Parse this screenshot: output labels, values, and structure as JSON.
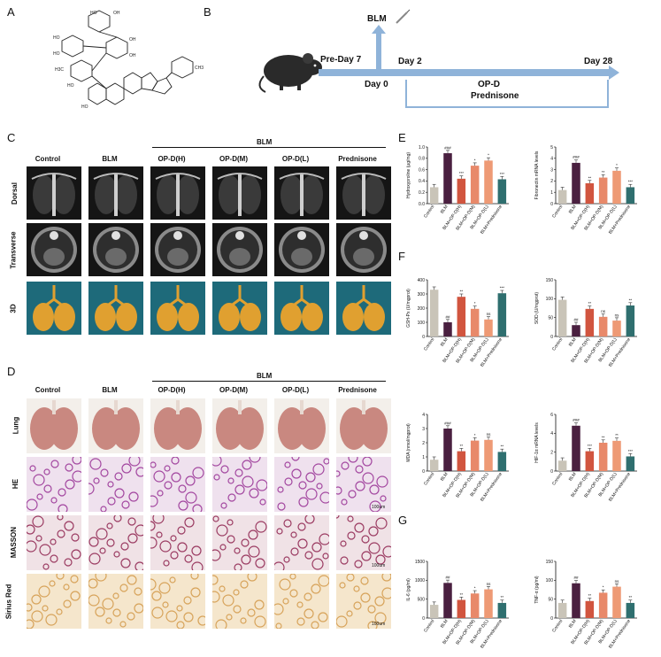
{
  "panels": {
    "A": "A",
    "B": "B",
    "C": "C",
    "D": "D",
    "E": "E",
    "F": "F",
    "G": "G"
  },
  "timeline": {
    "blm": "BLM",
    "pre_day": "Pre-Day 7",
    "day0": "Day 0",
    "day2": "Day 2",
    "day28": "Day 28",
    "drug1": "OP-D",
    "drug2": "Prednisone"
  },
  "groups": [
    "Control",
    "BLM",
    "OP-D(H)",
    "OP-D(M)",
    "OP-D(L)",
    "Prednisone"
  ],
  "blm_bracket": "BLM",
  "ct_rows": [
    "Dorsal",
    "Transverse",
    "3D"
  ],
  "hist_rows": [
    "Lung",
    "HE",
    "MASSON",
    "Sirius Red"
  ],
  "scale_bar": "100um",
  "colors": {
    "control": "#c9c4b8",
    "blm": "#4a2040",
    "op_h": "#d1553f",
    "op_m": "#e8896a",
    "op_l": "#ee9a75",
    "pred": "#2f6f6f",
    "ct_bg": "#151515",
    "lung3d": "#e0a030",
    "bg3d": "#1e6a7a"
  },
  "chart_data": [
    {
      "type": "bar",
      "id": "hydroxyproline",
      "ylabel": "Hydroxyproline (μg/mg)",
      "ylim": [
        0,
        1.0
      ],
      "yticks": [
        "0.0",
        "0.2",
        "0.4",
        "0.6",
        "0.8",
        "1.0"
      ],
      "categories": [
        "Control",
        "BLM",
        "BLM+OP-D(H)",
        "BLM+OP-D(M)",
        "BLM+OP-D(L)",
        "BLM+Prednisone"
      ],
      "values": [
        0.29,
        0.89,
        0.44,
        0.67,
        0.76,
        0.43
      ],
      "sig": [
        "",
        "###",
        "***",
        "*",
        "*",
        "***"
      ]
    },
    {
      "type": "bar",
      "id": "fibronectin",
      "ylabel": "Fibronectin mRNA levels",
      "ylim": [
        0,
        5
      ],
      "yticks": [
        "0",
        "1",
        "2",
        "3",
        "4",
        "5"
      ],
      "categories": [
        "Control",
        "BLM",
        "BLM+OP-D(H)",
        "BLM+OP-D(M)",
        "BLM+OP-D(L)",
        "BLM+Prednisone"
      ],
      "values": [
        1.2,
        3.6,
        1.8,
        2.3,
        2.9,
        1.45
      ],
      "sig": [
        "",
        "###",
        "**",
        "**",
        "*",
        "***"
      ]
    },
    {
      "type": "bar",
      "id": "gsh",
      "ylabel": "GSH-Px (U/mgprot)",
      "ylim": [
        0,
        400
      ],
      "yticks": [
        "0",
        "100",
        "200",
        "300",
        "400"
      ],
      "categories": [
        "Control",
        "BLM",
        "BLM+OP-D(H)",
        "BLM+OP-D(M)",
        "BLM+OP-D(L)",
        "BLM+Prednisone"
      ],
      "values": [
        330,
        100,
        280,
        195,
        120,
        305
      ],
      "sig": [
        "",
        "##",
        "**",
        "*",
        "ns",
        "***"
      ]
    },
    {
      "type": "bar",
      "id": "sod",
      "ylabel": "SOD (U/mgprot)",
      "ylim": [
        0,
        150
      ],
      "yticks": [
        "0",
        "50",
        "100",
        "150"
      ],
      "categories": [
        "Control",
        "BLM",
        "BLM+OP-D(H)",
        "BLM+OP-D(M)",
        "BLM+OP-D(L)",
        "BLM+Prednisone"
      ],
      "values": [
        97,
        30,
        73,
        52,
        42,
        82
      ],
      "sig": [
        "",
        "##",
        "**",
        "ns",
        "ns",
        "**"
      ]
    },
    {
      "type": "bar",
      "id": "mda",
      "ylabel": "MDA (nmol/mgprot)",
      "ylim": [
        0,
        4
      ],
      "yticks": [
        "0",
        "1",
        "2",
        "3",
        "4"
      ],
      "categories": [
        "Control",
        "BLM",
        "BLM+OP-D(H)",
        "BLM+OP-D(M)",
        "BLM+OP-D(L)",
        "BLM+Prednisone"
      ],
      "values": [
        0.8,
        3.0,
        1.4,
        2.15,
        2.2,
        1.35
      ],
      "sig": [
        "",
        "###",
        "**",
        "*",
        "ns",
        "**"
      ]
    },
    {
      "type": "bar",
      "id": "hif",
      "ylabel": "HIF-1α mRNA levels",
      "ylim": [
        0,
        6
      ],
      "yticks": [
        "0",
        "2",
        "4",
        "6"
      ],
      "categories": [
        "Control",
        "BLM",
        "BLM+OP-D(H)",
        "BLM+OP-D(M)",
        "BLM+OP-D(L)",
        "BLM+Prednisone"
      ],
      "values": [
        1.1,
        4.8,
        2.1,
        3.0,
        3.2,
        1.55
      ],
      "sig": [
        "",
        "###",
        "***",
        "**",
        "**",
        "***"
      ]
    },
    {
      "type": "bar",
      "id": "il6",
      "ylabel": "IL-6 (pg/ml)",
      "ylim": [
        0,
        1500
      ],
      "yticks": [
        "0",
        "500",
        "1000",
        "1500"
      ],
      "categories": [
        "Control",
        "BLM",
        "BLM+OP-D(H)",
        "BLM+OP-D(M)",
        "BLM+OP-D(L)",
        "BLM+Prednisone"
      ],
      "values": [
        350,
        930,
        480,
        650,
        760,
        400
      ],
      "sig": [
        "",
        "##",
        "**",
        "*",
        "ns",
        "**"
      ]
    },
    {
      "type": "bar",
      "id": "tnf",
      "ylabel": "TNF-α (pg/ml)",
      "ylim": [
        0,
        150
      ],
      "yticks": [
        "0",
        "50",
        "100",
        "150"
      ],
      "categories": [
        "Control",
        "BLM",
        "BLM+OP-D(H)",
        "BLM+OP-D(M)",
        "BLM+OP-D(L)",
        "BLM+Prednisone"
      ],
      "values": [
        40,
        92,
        45,
        67,
        83,
        40
      ],
      "sig": [
        "",
        "##",
        "**",
        "*",
        "ns",
        "**"
      ]
    }
  ]
}
